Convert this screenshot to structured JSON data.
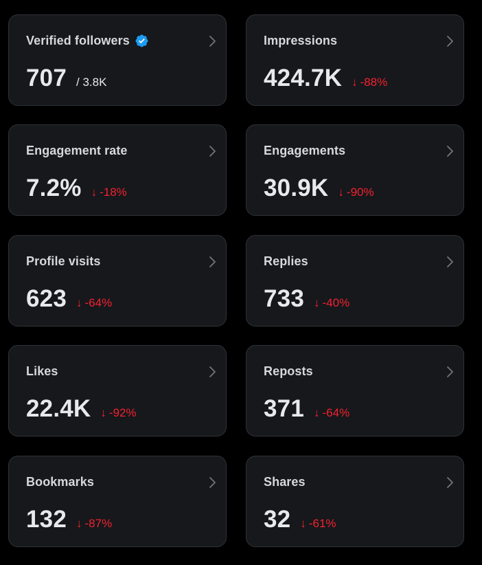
{
  "colors": {
    "background": "#000000",
    "card": "#16181c",
    "border": "#2f3336",
    "text": "#e7e9ea",
    "label": "#d6d9db",
    "negative": "#f4212e",
    "verified": "#1d9bf0"
  },
  "icons": {
    "verified": "verified-badge-icon",
    "chevron": "chevron-right-icon",
    "down_arrow": "arrow-down-icon"
  },
  "cards": [
    {
      "label": "Verified followers",
      "value": "707",
      "total": "/ 3.8K"
    },
    {
      "label": "Impressions",
      "value": "424.7K",
      "arrow": "↓",
      "change": "-88%"
    },
    {
      "label": "Engagement rate",
      "value": "7.2%",
      "arrow": "↓",
      "change": "-18%"
    },
    {
      "label": "Engagements",
      "value": "30.9K",
      "arrow": "↓",
      "change": "-90%"
    },
    {
      "label": "Profile visits",
      "value": "623",
      "arrow": "↓",
      "change": "-64%"
    },
    {
      "label": "Replies",
      "value": "733",
      "arrow": "↓",
      "change": "-40%"
    },
    {
      "label": "Likes",
      "value": "22.4K",
      "arrow": "↓",
      "change": "-92%"
    },
    {
      "label": "Reposts",
      "value": "371",
      "arrow": "↓",
      "change": "-64%"
    },
    {
      "label": "Bookmarks",
      "value": "132",
      "arrow": "↓",
      "change": "-87%"
    },
    {
      "label": "Shares",
      "value": "32",
      "arrow": "↓",
      "change": "-61%"
    }
  ]
}
